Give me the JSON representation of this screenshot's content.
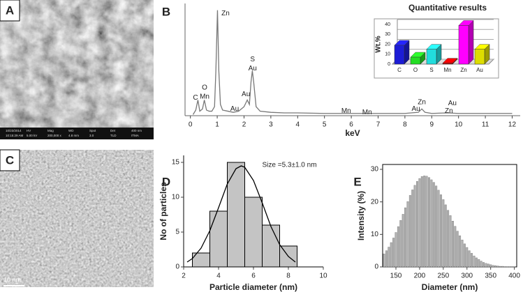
{
  "panels": [
    "A",
    "B",
    "C",
    "D",
    "E"
  ],
  "sem_info": [
    "10/23/2014",
    "HV",
    "Mag",
    "WD",
    "Spot",
    "Det",
    "400 nm",
    "10:15:29 AM",
    "5.00 kV",
    "200,000 x",
    "4.8 mm",
    "3.0",
    "TLD",
    "ITMA"
  ],
  "tem_scale": "10 nm",
  "chart_data": [
    {
      "type": "line",
      "xlabel": "keV",
      "color": "#777777",
      "x": [
        0.1,
        0.2,
        0.28,
        0.35,
        0.45,
        0.52,
        0.6,
        0.7,
        0.8,
        0.9,
        0.95,
        1.01,
        1.06,
        1.12,
        1.2,
        1.4,
        1.6,
        1.8,
        2.0,
        2.12,
        2.2,
        2.26,
        2.31,
        2.36,
        2.45,
        2.6,
        3.0,
        3.5,
        4.0,
        5.0,
        6.0,
        7.0,
        8.0,
        8.5,
        8.63,
        8.75,
        9.0,
        9.6,
        10,
        11,
        12
      ],
      "y": [
        1,
        5,
        14,
        4,
        6,
        14,
        5,
        4,
        4,
        8,
        40,
        94,
        40,
        10,
        5,
        4,
        3,
        4,
        8,
        14,
        10,
        30,
        40,
        30,
        8,
        4,
        3,
        2.5,
        2.5,
        2,
        2,
        2,
        2,
        3,
        6,
        3,
        2,
        2.5,
        2,
        2,
        2
      ],
      "xlim": [
        -0.2,
        12.3
      ],
      "xticks": [
        0,
        1,
        2,
        3,
        4,
        5,
        6,
        7,
        8,
        9,
        10,
        11,
        12
      ],
      "ylim": [
        0,
        100
      ],
      "annotations": [
        {
          "text": "C",
          "x": 0.19,
          "y": 16
        },
        {
          "text": "O",
          "x": 0.53,
          "y": 25
        },
        {
          "text": "Mn",
          "x": 0.53,
          "y": 17
        },
        {
          "text": "Zn",
          "x": 1.31,
          "y": 91
        },
        {
          "text": "Au",
          "x": 1.65,
          "y": 6
        },
        {
          "text": "Au",
          "x": 2.07,
          "y": 19
        },
        {
          "text": "S",
          "x": 2.32,
          "y": 50
        },
        {
          "text": "Au",
          "x": 2.32,
          "y": 42
        },
        {
          "text": "Mn",
          "x": 5.81,
          "y": 4
        },
        {
          "text": "Mn",
          "x": 6.59,
          "y": 3
        },
        {
          "text": "Au",
          "x": 8.41,
          "y": 6
        },
        {
          "text": "Zn",
          "x": 8.63,
          "y": 12
        },
        {
          "text": "Zn",
          "x": 9.64,
          "y": 4
        },
        {
          "text": "Au",
          "x": 9.77,
          "y": 11
        }
      ]
    },
    {
      "type": "bar3d",
      "title": "Quantitative results",
      "ylabel": "Wt.%",
      "categories": [
        "C",
        "O",
        "S",
        "Mn",
        "Zn",
        "Au"
      ],
      "values": [
        19,
        7,
        15,
        1,
        39,
        15
      ],
      "colors": [
        "#1c1cd6",
        "#22dd22",
        "#22dddd",
        "#cc0000",
        "#ff00ff",
        "#dddd00"
      ],
      "ylim": [
        0,
        40
      ],
      "yticks": [
        0,
        10,
        20,
        30,
        40
      ],
      "grid": true
    },
    {
      "type": "histogram",
      "xlabel": "Particle diameter (nm)",
      "ylabel": "No of particles",
      "annotation": "Size =5.3±1.0 nm",
      "bins": [
        2.5,
        3.5,
        4.5,
        5.5,
        6.5,
        7.5,
        8.5
      ],
      "values": [
        2,
        8,
        15,
        10,
        6,
        3
      ],
      "color": "#c4c4c4",
      "fit": {
        "x": [
          2.2,
          2.5,
          3,
          3.5,
          4,
          4.5,
          5,
          5.3,
          5.5,
          6,
          6.5,
          7,
          7.5,
          8,
          8.4
        ],
        "y": [
          0.7,
          1.2,
          2.7,
          5.2,
          8.5,
          11.9,
          14.1,
          14.5,
          14.3,
          12.4,
          9.2,
          5.8,
          3.2,
          1.5,
          0.7
        ]
      },
      "xlim": [
        2,
        10
      ],
      "xticks": [
        2,
        4,
        6,
        8,
        10
      ],
      "ylim": [
        0,
        16
      ],
      "yticks": [
        0,
        5,
        10,
        15
      ]
    },
    {
      "type": "bar",
      "xlabel": "Diameter (nm)",
      "ylabel": "Intensity (%)",
      "color": "#b0b0b0",
      "x": [
        125,
        130,
        135,
        140,
        145,
        150,
        155,
        160,
        165,
        170,
        175,
        180,
        185,
        190,
        195,
        200,
        205,
        210,
        215,
        220,
        225,
        230,
        235,
        240,
        245,
        250,
        255,
        260,
        265,
        270,
        275,
        280,
        285,
        290,
        295,
        300,
        305,
        310,
        315,
        320,
        325,
        330,
        335,
        340,
        345,
        350,
        355,
        360,
        365,
        370,
        375,
        380,
        385,
        390,
        395,
        400
      ],
      "values": [
        4.0,
        5.0,
        6.1,
        7.5,
        8.9,
        10.6,
        12.4,
        14.3,
        16.2,
        18.2,
        20.1,
        22.0,
        23.7,
        25.1,
        26.3,
        27.2,
        27.8,
        28,
        27.9,
        27.5,
        26.8,
        26.0,
        24.9,
        23.6,
        22.2,
        20.7,
        19.1,
        17.4,
        15.8,
        14.1,
        12.5,
        11.0,
        9.6,
        8.3,
        7.1,
        6.0,
        5.0,
        4.2,
        3.4,
        2.8,
        2.3,
        1.8,
        1.4,
        1.1,
        0.9,
        0.7,
        0.5,
        0.4,
        0.3,
        0.2,
        0.2,
        0.1,
        0.1,
        0.1,
        0.1,
        0.1
      ],
      "xlim": [
        122,
        405
      ],
      "xticks": [
        150,
        200,
        250,
        300,
        350,
        400
      ],
      "ylim": [
        0,
        31.5
      ],
      "yticks": [
        0,
        10,
        20,
        30
      ]
    }
  ]
}
